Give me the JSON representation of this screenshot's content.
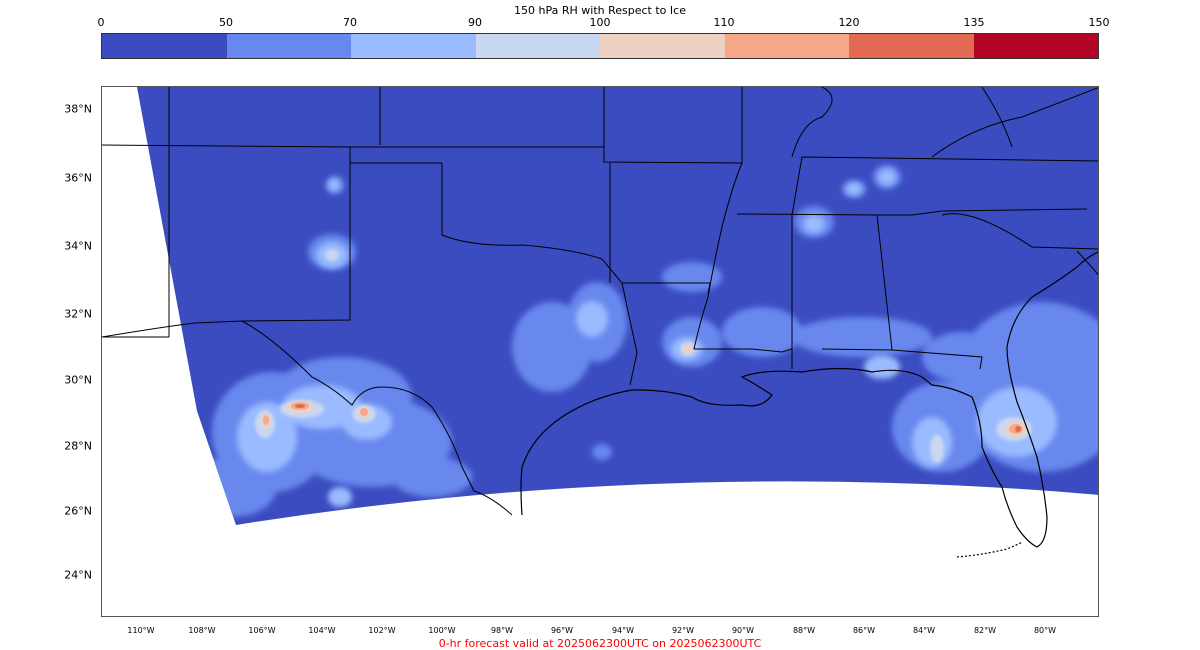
{
  "colorbar": {
    "title": "150 hPa RH with Respect to Ice",
    "ticks": [
      "0",
      "50",
      "70",
      "90",
      "100",
      "110",
      "120",
      "135",
      "150"
    ],
    "colors": [
      "#3b4cc0",
      "#6788ee",
      "#9abbff",
      "#c9d7f0",
      "#edd1c2",
      "#f7a889",
      "#e26952",
      "#b40426"
    ]
  },
  "map": {
    "background_color": "#3b4cc0",
    "lat_labels": [
      "38°N",
      "36°N",
      "34°N",
      "32°N",
      "30°N",
      "28°N",
      "26°N",
      "24°N"
    ],
    "lon_labels": [
      "110°W",
      "108°W",
      "106°W",
      "104°W",
      "102°W",
      "100°W",
      "98°W",
      "96°W",
      "94°W",
      "92°W",
      "90°W",
      "88°W",
      "86°W",
      "84°W",
      "82°W",
      "80°W"
    ]
  },
  "footer": "0-hr forecast valid at 2025062300UTC on 2025062300UTC"
}
